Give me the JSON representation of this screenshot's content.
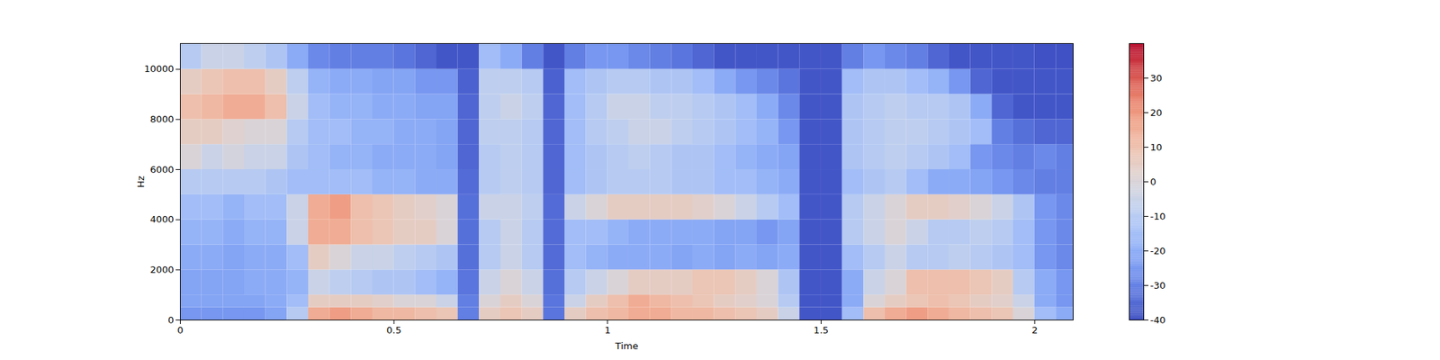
{
  "chart_data": {
    "type": "heatmap",
    "x_label": "Time",
    "y_label": "Hz",
    "xlim": [
      0,
      2.09
    ],
    "ylim": [
      0,
      11025
    ],
    "xticks": [
      0,
      0.5,
      1,
      1.5,
      2
    ],
    "yticks": [
      0,
      2000,
      4000,
      6000,
      8000,
      10000
    ],
    "x_edges": [
      0,
      0.05,
      0.1,
      0.15,
      0.2,
      0.25,
      0.3,
      0.35,
      0.4,
      0.45,
      0.5,
      0.55,
      0.6,
      0.65,
      0.7,
      0.75,
      0.8,
      0.85,
      0.9,
      0.95,
      1,
      1.05,
      1.1,
      1.15,
      1.2,
      1.25,
      1.3,
      1.35,
      1.4,
      1.45,
      1.5,
      1.55,
      1.6,
      1.65,
      1.7,
      1.75,
      1.8,
      1.85,
      1.9,
      1.95,
      2,
      2.05,
      2.09
    ],
    "y_edges": [
      0,
      500,
      1000,
      2000,
      3000,
      4000,
      5000,
      6000,
      7000,
      8000,
      9000,
      10000,
      11025
    ],
    "z": [
      [
        -25,
        -25,
        -25,
        -25,
        -22,
        -10,
        15,
        18,
        15,
        12,
        12,
        10,
        8,
        -30,
        5,
        8,
        5,
        -32,
        5,
        10,
        12,
        15,
        15,
        12,
        12,
        10,
        8,
        5,
        -5,
        -38,
        -38,
        -15,
        10,
        15,
        18,
        15,
        12,
        10,
        8,
        0,
        -15,
        -20
      ],
      [
        -22,
        -22,
        -22,
        -22,
        -20,
        -15,
        5,
        5,
        5,
        3,
        0,
        0,
        -5,
        -30,
        0,
        5,
        0,
        -32,
        -5,
        5,
        10,
        15,
        12,
        10,
        8,
        5,
        3,
        0,
        -10,
        -38,
        -38,
        -20,
        0,
        5,
        8,
        10,
        8,
        5,
        3,
        -5,
        -20,
        -25
      ],
      [
        -22,
        -22,
        -22,
        -20,
        -20,
        -18,
        -5,
        -8,
        -10,
        -12,
        -12,
        -15,
        -18,
        -32,
        -5,
        0,
        -5,
        -33,
        -10,
        -5,
        0,
        5,
        5,
        5,
        8,
        8,
        5,
        0,
        -12,
        -38,
        -38,
        -20,
        -5,
        0,
        10,
        10,
        10,
        8,
        5,
        -10,
        -20,
        -25
      ],
      [
        -20,
        -20,
        -22,
        -20,
        -20,
        -15,
        5,
        0,
        -5,
        -5,
        -8,
        -10,
        -12,
        -33,
        -10,
        -5,
        -10,
        -34,
        -15,
        -18,
        -20,
        -20,
        -20,
        -22,
        -20,
        -22,
        -20,
        -22,
        -20,
        -38,
        -38,
        -15,
        -10,
        -5,
        -10,
        -10,
        -8,
        -10,
        -12,
        -15,
        -25,
        -28
      ],
      [
        -18,
        -18,
        -20,
        -18,
        -18,
        -5,
        15,
        15,
        10,
        8,
        5,
        5,
        0,
        -33,
        -10,
        -5,
        -10,
        -34,
        -15,
        -15,
        -18,
        -20,
        -20,
        -20,
        -20,
        -22,
        -22,
        -25,
        -22,
        -38,
        -38,
        -10,
        -5,
        0,
        -5,
        -10,
        -10,
        -8,
        -10,
        -15,
        -25,
        -28
      ],
      [
        -15,
        -15,
        -18,
        -15,
        -15,
        -5,
        15,
        18,
        10,
        8,
        5,
        3,
        0,
        -33,
        -5,
        -5,
        -8,
        -34,
        -5,
        0,
        5,
        5,
        5,
        5,
        3,
        0,
        -5,
        -10,
        -15,
        -38,
        -38,
        -10,
        -5,
        0,
        5,
        5,
        3,
        0,
        -5,
        -12,
        -25,
        -28
      ],
      [
        -10,
        -10,
        -10,
        -10,
        -12,
        -15,
        -15,
        -15,
        -15,
        -18,
        -18,
        -20,
        -20,
        -34,
        -10,
        -8,
        -10,
        -35,
        -15,
        -12,
        -10,
        -10,
        -10,
        -12,
        -12,
        -15,
        -15,
        -18,
        -20,
        -38,
        -38,
        -15,
        -12,
        -10,
        -15,
        -20,
        -20,
        -22,
        -25,
        -28,
        -30,
        -30
      ],
      [
        0,
        -5,
        -2,
        -5,
        -5,
        -12,
        -15,
        -18,
        -18,
        -20,
        -20,
        -20,
        -22,
        -35,
        -10,
        -8,
        -10,
        -35,
        -15,
        -12,
        -10,
        -8,
        -10,
        -12,
        -12,
        -15,
        -18,
        -20,
        -22,
        -38,
        -38,
        -12,
        -10,
        -8,
        -10,
        -12,
        -15,
        -25,
        -28,
        -30,
        -28,
        -30
      ],
      [
        5,
        5,
        2,
        0,
        0,
        -10,
        -15,
        -15,
        -18,
        -18,
        -20,
        -20,
        -22,
        -35,
        -8,
        -8,
        -10,
        -35,
        -15,
        -10,
        -8,
        -5,
        -5,
        -8,
        -10,
        -12,
        -15,
        -18,
        -25,
        -38,
        -38,
        -12,
        -10,
        -8,
        -8,
        -10,
        -12,
        -15,
        -30,
        -33,
        -35,
        -35
      ],
      [
        10,
        12,
        15,
        15,
        10,
        -5,
        -15,
        -18,
        -18,
        -20,
        -20,
        -22,
        -22,
        -35,
        -8,
        -5,
        -8,
        -35,
        -15,
        -10,
        -5,
        -5,
        -8,
        -8,
        -10,
        -12,
        -15,
        -20,
        -28,
        -38,
        -38,
        -12,
        -10,
        -8,
        -10,
        -10,
        -12,
        -20,
        -35,
        -38,
        -38,
        -38
      ],
      [
        5,
        8,
        10,
        10,
        5,
        -8,
        -18,
        -20,
        -20,
        -22,
        -22,
        -25,
        -25,
        -36,
        -8,
        -8,
        -10,
        -36,
        -15,
        -12,
        -10,
        -10,
        -12,
        -12,
        -15,
        -20,
        -25,
        -28,
        -32,
        -38,
        -38,
        -15,
        -12,
        -12,
        -15,
        -18,
        -25,
        -35,
        -38,
        -38,
        -38,
        -38
      ],
      [
        -10,
        -5,
        -5,
        -8,
        -12,
        -20,
        -28,
        -30,
        -30,
        -30,
        -32,
        -35,
        -38,
        -38,
        -15,
        -20,
        -30,
        -38,
        -30,
        -25,
        -25,
        -28,
        -30,
        -32,
        -35,
        -38,
        -38,
        -38,
        -38,
        -38,
        -38,
        -30,
        -25,
        -28,
        -30,
        -35,
        -38,
        -38,
        -38,
        -38,
        -39,
        -39
      ]
    ],
    "colorbar_range": [
      -40,
      40
    ],
    "colorbar_ticks": [
      -40,
      -30,
      -20,
      -10,
      0,
      10,
      20,
      30
    ]
  }
}
